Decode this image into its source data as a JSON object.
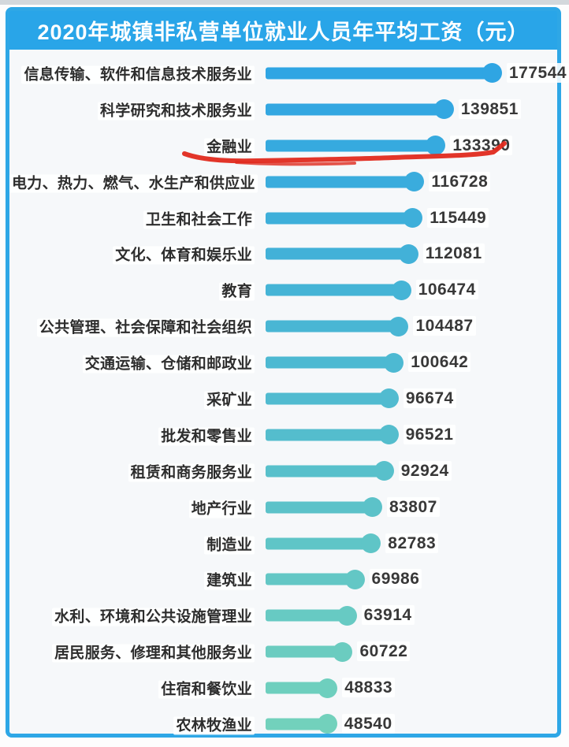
{
  "header": {
    "title": "2020年城镇非私营单位就业人员年平均工资（元）"
  },
  "frame": {
    "border_color": "#2ea7e6",
    "header_bg": "#29a5e8"
  },
  "chart_data": {
    "type": "bar",
    "orientation": "horizontal",
    "title": "2020年城镇非私营单位就业人员年平均工资（元）",
    "unit": "元",
    "categories": [
      "信息传输、软件和信息技术服务业",
      "科学研究和技术服务业",
      "金融业",
      "电力、热力、燃气、水生产和供应业",
      "卫生和社会工作",
      "文化、体育和娱乐业",
      "教育",
      "公共管理、社会保障和社会组织",
      "交通运输、仓储和邮政业",
      "采矿业",
      "批发和零售业",
      "租赁和商务服务业",
      "地产行业",
      "制造业",
      "建筑业",
      "水利、环境和公共设施管理业",
      "居民服务、修理和其他服务业",
      "住宿和餐饮业",
      "农林牧渔业"
    ],
    "values": [
      177544,
      139851,
      133390,
      116728,
      115449,
      112081,
      106474,
      104487,
      100642,
      96674,
      96521,
      92924,
      83807,
      82783,
      69986,
      63914,
      60722,
      48833,
      48540
    ],
    "value_labels_shown": true,
    "xlim": [
      0,
      180000
    ],
    "grid": false,
    "legend": "none",
    "bar_color_start": "#2fa5e3",
    "bar_color_end": "#72d1bc",
    "label_color": "#2d2d2d",
    "value_color": "#383838"
  },
  "annotation": {
    "type": "hand-drawn-underline",
    "target_category": "金融业",
    "target_index": 2,
    "color": "#e02a1e"
  }
}
